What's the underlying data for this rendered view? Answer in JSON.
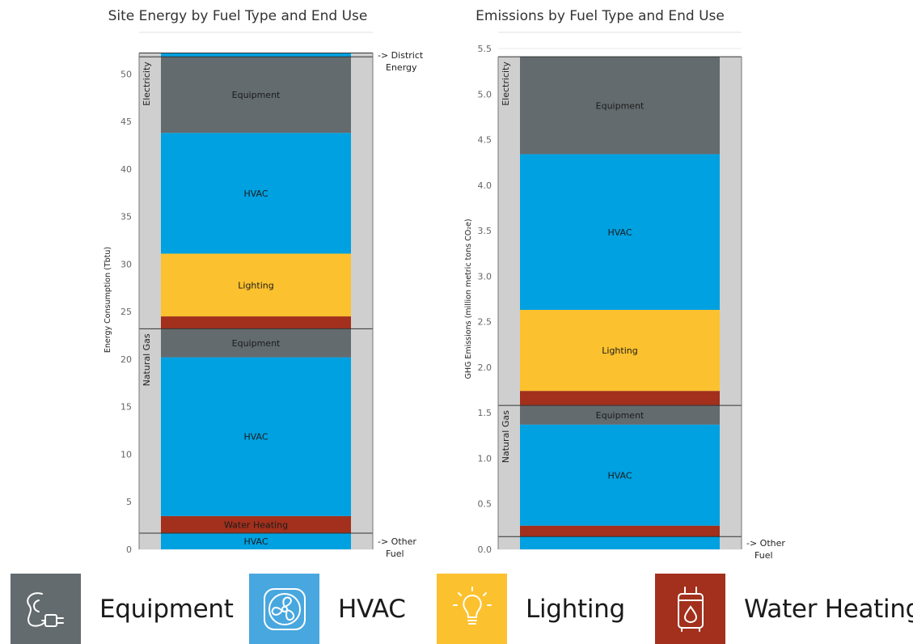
{
  "colors": {
    "Equipment": "#636b6f",
    "HVAC": "#00a1e1",
    "Lighting": "#fcc12e",
    "Water Heating": "#a2301c",
    "fuel_band": "#cfcfcf",
    "grid": "#e9e9e9"
  },
  "legend": [
    {
      "label": "Equipment",
      "icon": "plug-icon"
    },
    {
      "label": "HVAC",
      "icon": "fan-icon"
    },
    {
      "label": "Lighting",
      "icon": "lightbulb-icon"
    },
    {
      "label": "Water Heating",
      "icon": "water-heater-icon"
    }
  ],
  "chart_data": [
    {
      "type": "bar",
      "stacked": true,
      "title": "Site Energy by Fuel Type and End Use",
      "ylabel": "Energy Consumption (Tbtu)",
      "ylim": [
        0,
        52.5
      ],
      "yticks": [
        "0",
        "5",
        "10",
        "15",
        "20",
        "25",
        "30",
        "35",
        "40",
        "45",
        "50"
      ],
      "fuel_groups": [
        {
          "name": "",
          "start": 0,
          "end": 1.7,
          "side_label": "-> Other Fuel"
        },
        {
          "name": "Natural Gas",
          "start": 1.7,
          "end": 23.2
        },
        {
          "name": "Electricity",
          "start": 23.2,
          "end": 51.8
        },
        {
          "name": "",
          "start": 51.8,
          "end": 52.2,
          "side_label": "-> District Energy"
        }
      ],
      "segments": [
        {
          "fuel": "Other Fuel",
          "end_use": "HVAC",
          "value": 1.7,
          "label": "HVAC"
        },
        {
          "fuel": "Natural Gas",
          "end_use": "Water Heating",
          "value": 1.8,
          "label": "Water Heating"
        },
        {
          "fuel": "Natural Gas",
          "end_use": "HVAC",
          "value": 16.7,
          "label": "HVAC"
        },
        {
          "fuel": "Natural Gas",
          "end_use": "Equipment",
          "value": 3.0,
          "label": "Equipment"
        },
        {
          "fuel": "Electricity",
          "end_use": "Water Heating",
          "value": 1.3,
          "label": ""
        },
        {
          "fuel": "Electricity",
          "end_use": "Lighting",
          "value": 6.6,
          "label": "Lighting"
        },
        {
          "fuel": "Electricity",
          "end_use": "HVAC",
          "value": 12.7,
          "label": "HVAC"
        },
        {
          "fuel": "Electricity",
          "end_use": "Equipment",
          "value": 8.0,
          "label": "Equipment"
        },
        {
          "fuel": "District Energy",
          "end_use": "HVAC",
          "value": 0.4,
          "label": ""
        }
      ]
    },
    {
      "type": "bar",
      "stacked": true,
      "title": "Emissions by Fuel Type and End Use",
      "ylabel": "GHG Emissions (million metric tons CO₂e)",
      "ylim": [
        0,
        5.5
      ],
      "yticks": [
        "0.0",
        "0.5",
        "1.0",
        "1.5",
        "2.0",
        "2.5",
        "3.0",
        "3.5",
        "4.0",
        "4.5",
        "5.0",
        "5.5"
      ],
      "fuel_groups": [
        {
          "name": "",
          "start": 0,
          "end": 0.14,
          "side_label": "-> Other Fuel"
        },
        {
          "name": "Natural Gas",
          "start": 0.14,
          "end": 1.58
        },
        {
          "name": "Electricity",
          "start": 1.58,
          "end": 5.41
        }
      ],
      "segments": [
        {
          "fuel": "Other Fuel",
          "end_use": "HVAC",
          "value": 0.14,
          "label": ""
        },
        {
          "fuel": "Natural Gas",
          "end_use": "Water Heating",
          "value": 0.12,
          "label": ""
        },
        {
          "fuel": "Natural Gas",
          "end_use": "HVAC",
          "value": 1.11,
          "label": "HVAC"
        },
        {
          "fuel": "Natural Gas",
          "end_use": "Equipment",
          "value": 0.21,
          "label": "Equipment"
        },
        {
          "fuel": "Electricity",
          "end_use": "Water Heating",
          "value": 0.16,
          "label": ""
        },
        {
          "fuel": "Electricity",
          "end_use": "Lighting",
          "value": 0.89,
          "label": "Lighting"
        },
        {
          "fuel": "Electricity",
          "end_use": "HVAC",
          "value": 1.71,
          "label": "HVAC"
        },
        {
          "fuel": "Electricity",
          "end_use": "Equipment",
          "value": 1.07,
          "label": "Equipment"
        }
      ]
    }
  ]
}
